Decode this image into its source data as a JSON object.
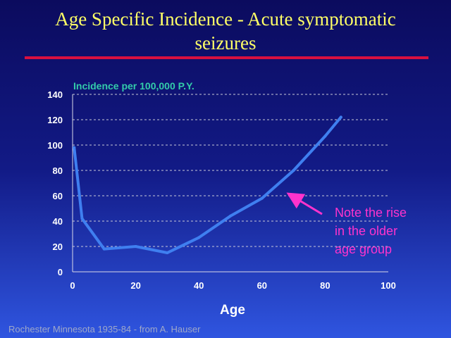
{
  "title_line1": "Age Specific Incidence - Acute symptomatic",
  "title_line2": "seizures",
  "footer": "Rochester Minnesota 1935-84 - from A. Hauser",
  "colors": {
    "title": "#ffff66",
    "rule": "#d81040",
    "line": "#3f7ff0",
    "ylabel": "#33ccaa",
    "annotation": "#ff33cc",
    "axis_text": "#ffffff"
  },
  "chart_data": {
    "type": "line",
    "title": "",
    "ylabel": "Incidence per 100,000 P.Y.",
    "xlabel": "Age",
    "xlim": [
      0,
      100
    ],
    "ylim": [
      0,
      140
    ],
    "xticks": [
      0,
      20,
      40,
      60,
      80,
      100
    ],
    "yticks": [
      0,
      20,
      40,
      60,
      80,
      100,
      120,
      140
    ],
    "grid": "horizontal dashed",
    "series": [
      {
        "x": [
          0.5,
          3,
          10,
          20,
          30,
          40,
          50,
          60,
          70,
          80,
          85
        ],
        "y": [
          98,
          42,
          18,
          20,
          15,
          27,
          44,
          58,
          80,
          107,
          122
        ]
      }
    ],
    "annotation": {
      "lines": [
        "Note the rise",
        "in the older",
        "age group"
      ],
      "arrow_to": [
        68,
        63
      ]
    }
  }
}
